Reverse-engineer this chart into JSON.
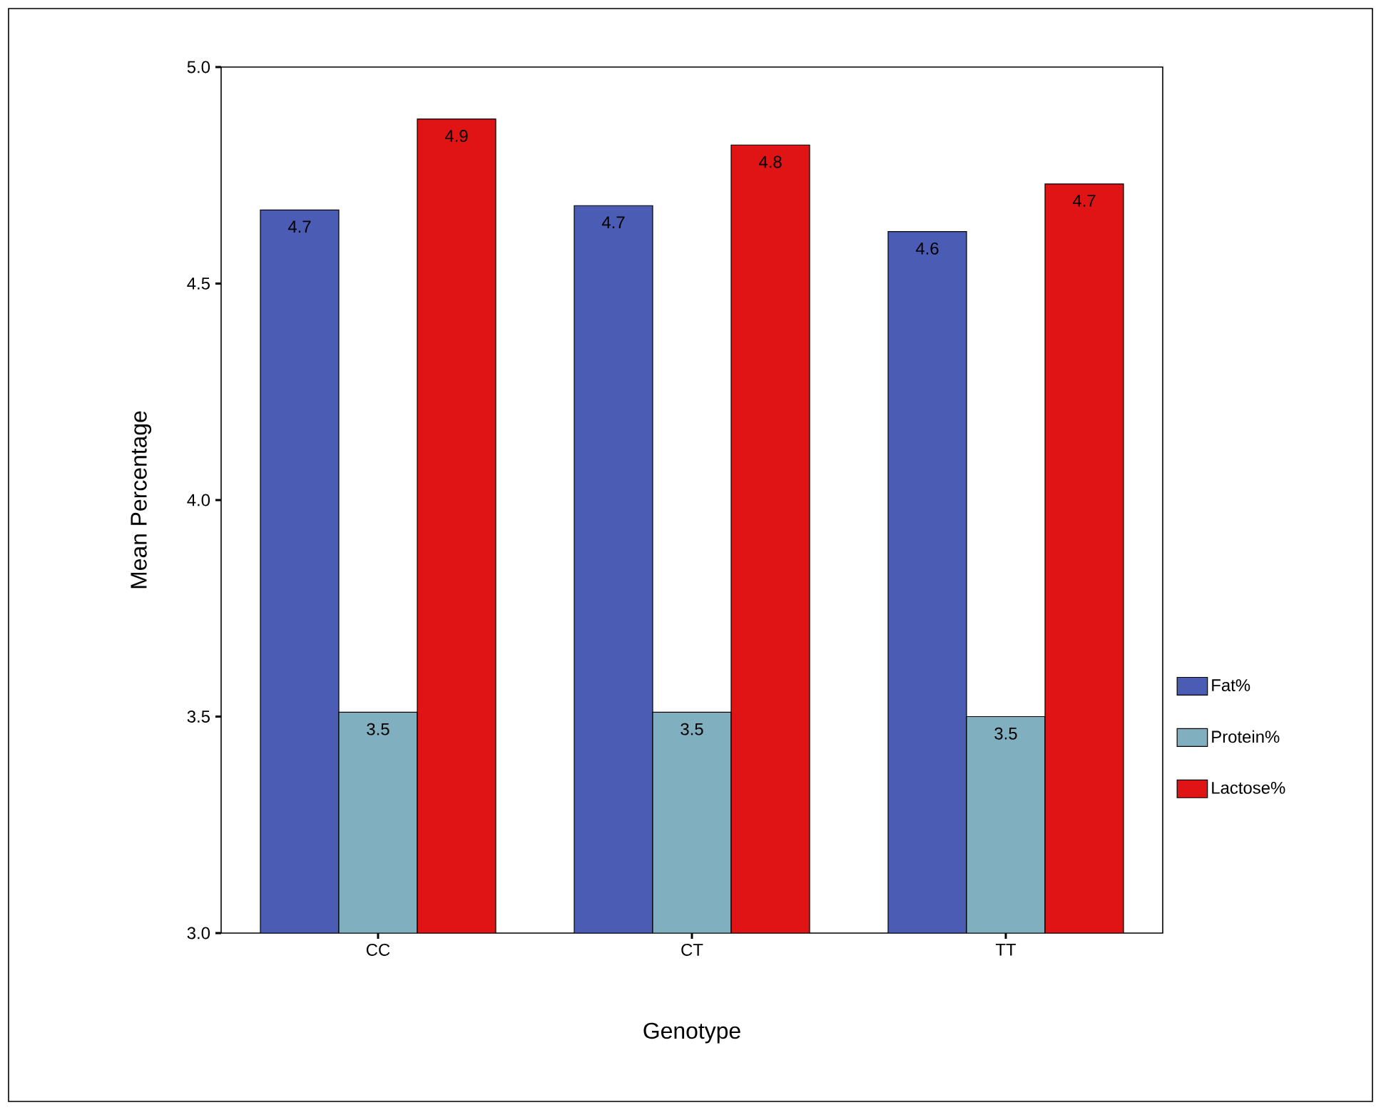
{
  "chart_data": {
    "type": "bar",
    "xlabel": "Genotype",
    "ylabel": "Mean Percentage",
    "categories": [
      "CC",
      "CT",
      "TT"
    ],
    "series": [
      {
        "name": "Fat%",
        "color": "#4a5cb4",
        "values": [
          4.67,
          4.68,
          4.62
        ],
        "value_labels": [
          "4.7",
          "4.7",
          "4.6"
        ]
      },
      {
        "name": "Protein%",
        "color": "#80b0c0",
        "values": [
          3.51,
          3.51,
          3.5
        ],
        "value_labels": [
          "3.5",
          "3.5",
          "3.5"
        ]
      },
      {
        "name": "Lactose%",
        "color": "#e01414",
        "values": [
          4.88,
          4.82,
          4.73
        ],
        "value_labels": [
          "4.9",
          "4.8",
          "4.7"
        ]
      }
    ],
    "ylim": [
      3,
      5
    ],
    "yticks": [
      {
        "value": 3,
        "label": "3.0"
      },
      {
        "value": 3.5,
        "label": "3.5"
      },
      {
        "value": 4,
        "label": "4.0"
      },
      {
        "value": 4.5,
        "label": "4.5"
      },
      {
        "value": 5,
        "label": "5.0"
      }
    ],
    "legend": "right",
    "grid": false
  }
}
